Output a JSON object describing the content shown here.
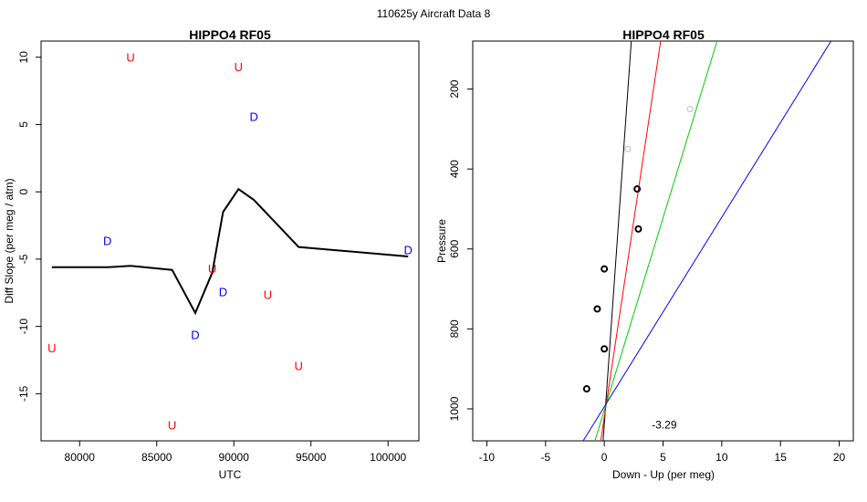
{
  "page_title": "110625y   Aircraft Data 8",
  "chart_data": [
    {
      "type": "line",
      "title": "HIPPO4 RF05",
      "xlabel": "UTC",
      "ylabel": "Diff Slope (per meg / atm)",
      "xlim": [
        77500,
        102000
      ],
      "ylim": [
        -18.5,
        11.2
      ],
      "xticks": [
        80000,
        85000,
        90000,
        95000,
        100000
      ],
      "yticks": [
        -15,
        -10,
        -5,
        0,
        5,
        10
      ],
      "grid": false,
      "line": {
        "color": "#000000",
        "x": [
          78200,
          81800,
          83300,
          86000,
          87500,
          88600,
          89300,
          90300,
          91300,
          94200,
          101300
        ],
        "y": [
          -5.6,
          -5.6,
          -5.5,
          -5.8,
          -9.0,
          -6.0,
          -1.5,
          0.2,
          -0.6,
          -4.1,
          -4.8
        ]
      },
      "markers": [
        {
          "label": "U",
          "color": "#ff0000",
          "x": 83300,
          "y": 10.0
        },
        {
          "label": "U",
          "color": "#ff0000",
          "x": 90300,
          "y": 9.3
        },
        {
          "label": "D",
          "color": "#0000ff",
          "x": 91300,
          "y": 5.6
        },
        {
          "label": "D",
          "color": "#0000ff",
          "x": 81800,
          "y": -3.6
        },
        {
          "label": "D",
          "color": "#0000ff",
          "x": 101300,
          "y": -4.3
        },
        {
          "label": "U",
          "color": "#ff0000",
          "x": 88600,
          "y": -5.7
        },
        {
          "label": "D",
          "color": "#0000ff",
          "x": 89300,
          "y": -7.4
        },
        {
          "label": "U",
          "color": "#ff0000",
          "x": 92200,
          "y": -7.6
        },
        {
          "label": "D",
          "color": "#0000ff",
          "x": 87500,
          "y": -10.6
        },
        {
          "label": "U",
          "color": "#ff0000",
          "x": 78200,
          "y": -11.6
        },
        {
          "label": "U",
          "color": "#ff0000",
          "x": 94200,
          "y": -12.9
        },
        {
          "label": "U",
          "color": "#ff0000",
          "x": 86000,
          "y": -17.3
        }
      ]
    },
    {
      "type": "scatter",
      "title": "HIPPO4 RF05",
      "xlabel": "Down - Up (per meg)",
      "ylabel": "Pressure",
      "xlim": [
        -11.2,
        21.2
      ],
      "ylim_reversed": [
        1080,
        80
      ],
      "xticks": [
        -10,
        -5,
        0,
        5,
        10,
        15,
        20
      ],
      "yticks": [
        200,
        400,
        600,
        800,
        1000
      ],
      "grid": false,
      "annotation": "-3.29",
      "annotation_pos": {
        "x": 0,
        "y": 1040
      },
      "points": [
        {
          "x": 2.8,
          "y": 450,
          "color": "#000000"
        },
        {
          "x": 2.9,
          "y": 550,
          "color": "#000000"
        },
        {
          "x": 0.0,
          "y": 650,
          "color": "#000000"
        },
        {
          "x": -0.6,
          "y": 750,
          "color": "#000000"
        },
        {
          "x": 0.0,
          "y": 850,
          "color": "#000000"
        },
        {
          "x": -1.5,
          "y": 950,
          "color": "#000000"
        },
        {
          "x": 2.0,
          "y": 350,
          "color": "#bbbbbb"
        },
        {
          "x": 7.3,
          "y": 250,
          "color": "#bbbbbb"
        }
      ],
      "lines": [
        {
          "color": "#000000",
          "x": [
            -0.1,
            2.3
          ],
          "y": [
            1080,
            80
          ]
        },
        {
          "color": "#ff0000",
          "x": [
            -0.3,
            4.8
          ],
          "y": [
            1080,
            80
          ]
        },
        {
          "color": "#00cc00",
          "x": [
            -0.8,
            9.6
          ],
          "y": [
            1080,
            80
          ]
        },
        {
          "color": "#0000ff",
          "x": [
            -1.8,
            19.3
          ],
          "y": [
            1080,
            80
          ]
        }
      ]
    }
  ]
}
